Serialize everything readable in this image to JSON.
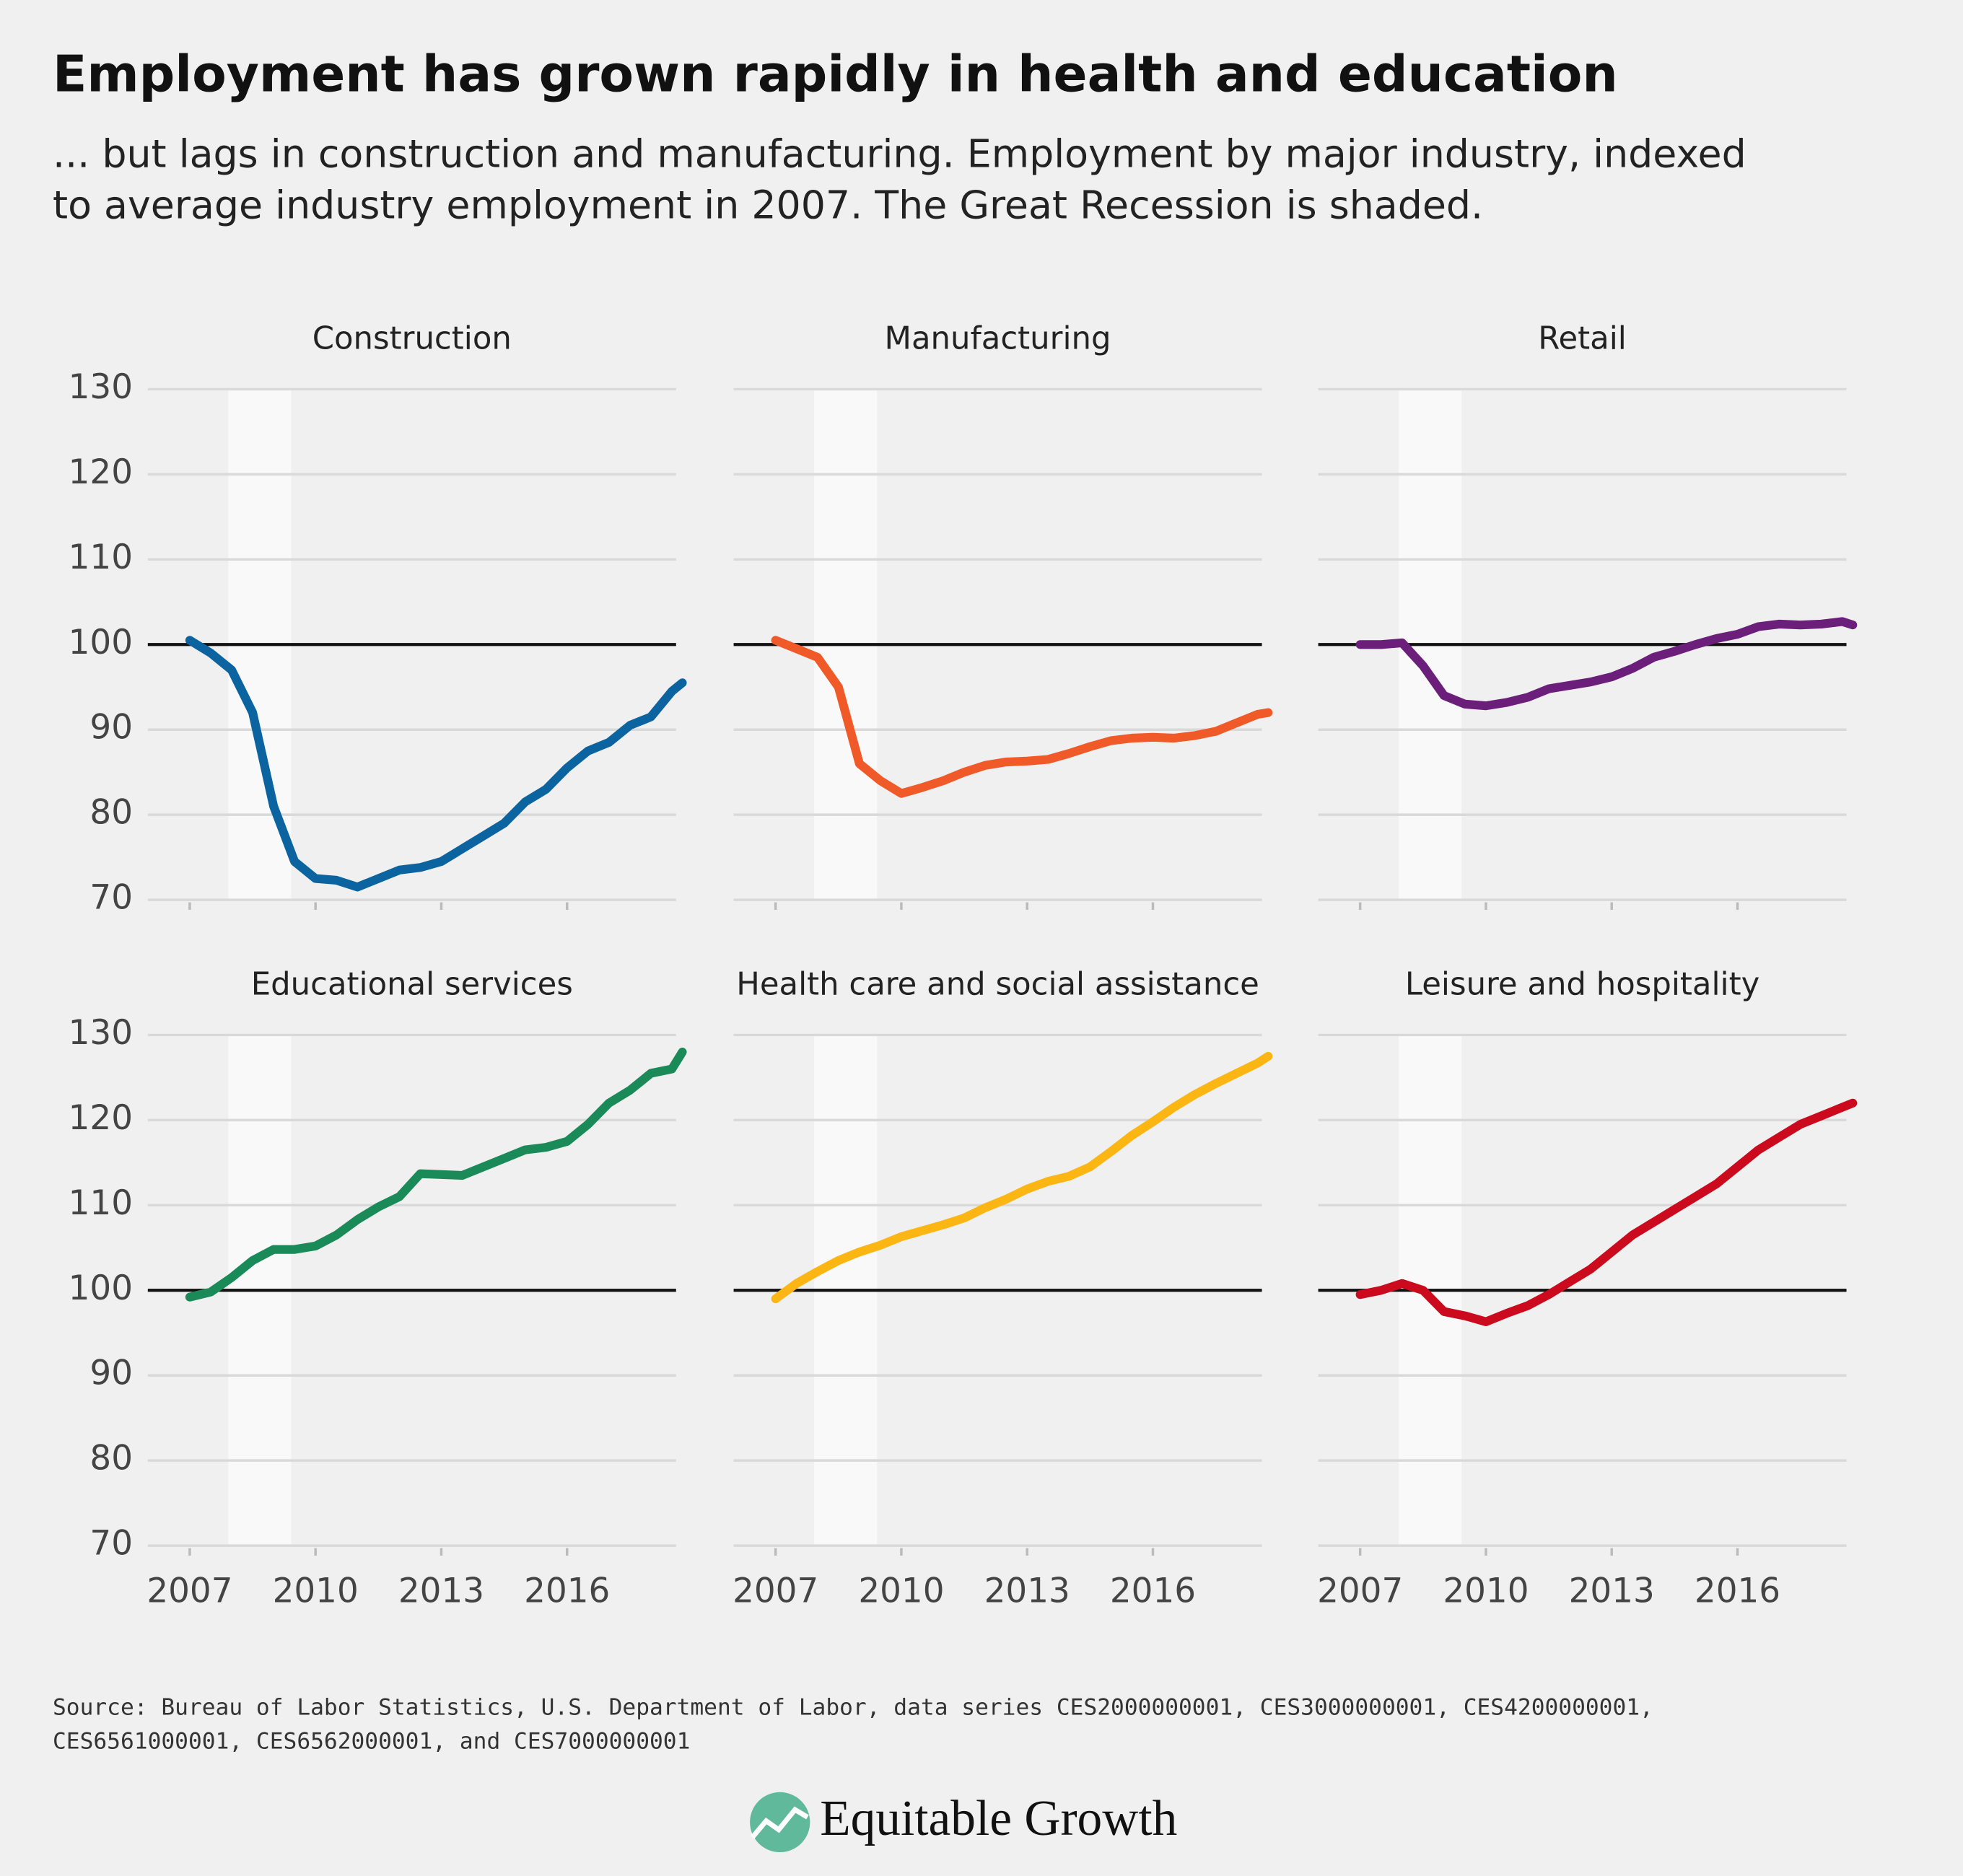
{
  "title": "Employment has grown rapidly in health and education",
  "subtitle": [
    "... but lags in construction and manufacturing. Employment by major industry, indexed",
    "to average industry employment in 2007. The Great Recession is shaded."
  ],
  "source": [
    "Source: Bureau of Labor Statistics, U.S. Department of Labor, data series CES2000000001, CES3000000001, CES4200000001,",
    "CES6561000001, CES6562000001, and CES7000000001"
  ],
  "brand": "Equitable Growth",
  "chart_data": [
    {
      "type": "line",
      "title": "Construction",
      "color": "#0b64a0",
      "x": [
        2007,
        2007.5,
        2008,
        2008.5,
        2009,
        2009.5,
        2010,
        2010.5,
        2011,
        2011.5,
        2012,
        2012.5,
        2013,
        2013.5,
        2014,
        2014.5,
        2015,
        2015.5,
        2016,
        2016.5,
        2017,
        2017.5,
        2018,
        2018.5,
        2018.75
      ],
      "values": [
        100.5,
        99,
        97,
        92,
        81,
        74.5,
        72.5,
        72.3,
        71.5,
        72.5,
        73.5,
        73.8,
        74.5,
        76,
        77.5,
        79,
        81.5,
        83,
        85.5,
        87.5,
        88.5,
        90.5,
        91.5,
        94.5,
        95.5
      ],
      "xlim": [
        2006,
        2018.6
      ],
      "xticks": [
        2007,
        2010,
        2013,
        2016
      ],
      "ylim": [
        70,
        130
      ],
      "yticks": [
        70,
        80,
        90,
        100,
        110,
        120,
        130
      ],
      "reference_line": 100,
      "recession": [
        2007.92,
        2009.42
      ],
      "grid": true
    },
    {
      "type": "line",
      "title": "Manufacturing",
      "color": "#f05a28",
      "x": [
        2007,
        2007.5,
        2008,
        2008.5,
        2009,
        2009.5,
        2010,
        2010.5,
        2011,
        2011.5,
        2012,
        2012.5,
        2013,
        2013.5,
        2014,
        2014.5,
        2015,
        2015.5,
        2016,
        2016.5,
        2017,
        2017.5,
        2018,
        2018.5,
        2018.75
      ],
      "values": [
        100.5,
        99.5,
        98.5,
        95,
        86,
        84,
        82.5,
        83.2,
        84,
        85,
        85.8,
        86.2,
        86.3,
        86.5,
        87.2,
        88,
        88.7,
        89,
        89.1,
        89,
        89.3,
        89.8,
        90.8,
        91.8,
        92
      ],
      "xlim": [
        2006,
        2018.6
      ],
      "xticks": [
        2007,
        2010,
        2013,
        2016
      ],
      "ylim": [
        70,
        130
      ],
      "yticks": [
        70,
        80,
        90,
        100,
        110,
        120,
        130
      ],
      "reference_line": 100,
      "recession": [
        2007.92,
        2009.42
      ],
      "grid": true
    },
    {
      "type": "line",
      "title": "Retail",
      "color": "#6b1f7b",
      "x": [
        2007,
        2007.5,
        2008,
        2008.5,
        2009,
        2009.5,
        2010,
        2010.5,
        2011,
        2011.5,
        2012,
        2012.5,
        2013,
        2013.5,
        2014,
        2014.5,
        2015,
        2015.5,
        2016,
        2016.5,
        2017,
        2017.5,
        2018,
        2018.5,
        2018.75
      ],
      "values": [
        100,
        100,
        100.2,
        97.5,
        94,
        93,
        92.8,
        93.2,
        93.8,
        94.8,
        95.2,
        95.6,
        96.2,
        97.2,
        98.5,
        99.2,
        100,
        100.7,
        101.2,
        102.1,
        102.4,
        102.3,
        102.4,
        102.7,
        102.3
      ],
      "xlim": [
        2006,
        2018.6
      ],
      "xticks": [
        2007,
        2010,
        2013,
        2016
      ],
      "ylim": [
        70,
        130
      ],
      "yticks": [
        70,
        80,
        90,
        100,
        110,
        120,
        130
      ],
      "reference_line": 100,
      "recession": [
        2007.92,
        2009.42
      ],
      "grid": true
    },
    {
      "type": "line",
      "title": "Educational services",
      "color": "#1a8a58",
      "x": [
        2007,
        2007.5,
        2008,
        2008.5,
        2009,
        2009.5,
        2010,
        2010.5,
        2011,
        2011.5,
        2012,
        2012.5,
        2013,
        2013.5,
        2014,
        2014.5,
        2015,
        2015.5,
        2016,
        2016.5,
        2017,
        2017.5,
        2018,
        2018.5,
        2018.75
      ],
      "values": [
        99.2,
        99.8,
        101.5,
        103.5,
        104.8,
        104.8,
        105.2,
        106.5,
        108.3,
        109.8,
        111,
        113.7,
        113.6,
        113.5,
        114.5,
        115.5,
        116.5,
        116.8,
        117.5,
        119.5,
        122,
        123.5,
        125.5,
        126,
        128
      ],
      "xlim": [
        2006,
        2018.6
      ],
      "xticks": [
        2007,
        2010,
        2013,
        2016
      ],
      "ylim": [
        70,
        130
      ],
      "yticks": [
        70,
        80,
        90,
        100,
        110,
        120,
        130
      ],
      "reference_line": 100,
      "recession": [
        2007.92,
        2009.42
      ],
      "grid": true
    },
    {
      "type": "line",
      "title": "Health care and social assistance",
      "color": "#fbb614",
      "x": [
        2007,
        2007.5,
        2008,
        2008.5,
        2009,
        2009.5,
        2010,
        2010.5,
        2011,
        2011.5,
        2012,
        2012.5,
        2013,
        2013.5,
        2014,
        2014.5,
        2015,
        2015.5,
        2016,
        2016.5,
        2017,
        2017.5,
        2018,
        2018.5,
        2018.75
      ],
      "values": [
        99,
        100.8,
        102.2,
        103.5,
        104.5,
        105.3,
        106.3,
        107,
        107.7,
        108.5,
        109.7,
        110.7,
        111.9,
        112.8,
        113.4,
        114.5,
        116.3,
        118.2,
        119.8,
        121.5,
        123,
        124.3,
        125.5,
        126.7,
        127.5
      ],
      "xlim": [
        2006,
        2018.6
      ],
      "xticks": [
        2007,
        2010,
        2013,
        2016
      ],
      "ylim": [
        70,
        130
      ],
      "yticks": [
        70,
        80,
        90,
        100,
        110,
        120,
        130
      ],
      "reference_line": 100,
      "recession": [
        2007.92,
        2009.42
      ],
      "grid": true
    },
    {
      "type": "line",
      "title": "Leisure and hospitality",
      "color": "#cc0a1e",
      "x": [
        2007,
        2007.5,
        2008,
        2008.5,
        2009,
        2009.5,
        2010,
        2010.5,
        2011,
        2011.5,
        2012,
        2012.5,
        2013,
        2013.5,
        2014,
        2014.5,
        2015,
        2015.5,
        2016,
        2016.5,
        2017,
        2017.5,
        2018,
        2018.5,
        2018.75
      ],
      "values": [
        99.5,
        100,
        100.8,
        100,
        97.5,
        97,
        96.3,
        97.3,
        98.2,
        99.5,
        101,
        102.5,
        104.5,
        106.5,
        108,
        109.5,
        111,
        112.5,
        114.5,
        116.5,
        118,
        119.5,
        120.5,
        121.5,
        122
      ],
      "xlim": [
        2006,
        2018.6
      ],
      "xticks": [
        2007,
        2010,
        2013,
        2016
      ],
      "ylim": [
        70,
        130
      ],
      "yticks": [
        70,
        80,
        90,
        100,
        110,
        120,
        130
      ],
      "reference_line": 100,
      "recession": [
        2007.92,
        2009.42
      ],
      "grid": true
    }
  ]
}
